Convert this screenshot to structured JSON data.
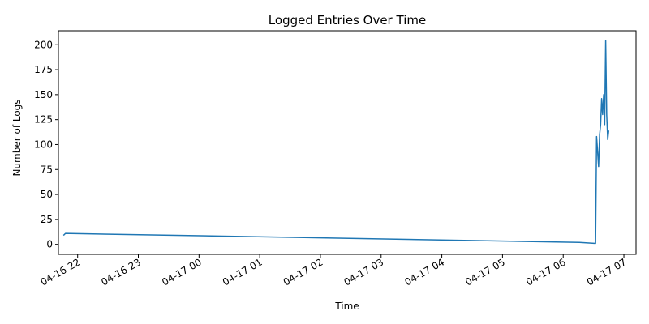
{
  "chart_data": {
    "type": "line",
    "title": "Logged Entries Over Time",
    "xlabel": "Time",
    "ylabel": "Number of Logs",
    "grid": false,
    "legend": "none",
    "line_color": "#1f77b4",
    "xlim": [
      "2026-04-16 21:41",
      "2026-04-17 07:12"
    ],
    "ylim": [
      -10,
      214
    ],
    "x_ticks": [
      {
        "time": "2026-04-16 22:00",
        "label": "04-16 22"
      },
      {
        "time": "2026-04-16 23:00",
        "label": "04-16 23"
      },
      {
        "time": "2026-04-17 00:00",
        "label": "04-17 00"
      },
      {
        "time": "2026-04-17 01:00",
        "label": "04-17 01"
      },
      {
        "time": "2026-04-17 02:00",
        "label": "04-17 02"
      },
      {
        "time": "2026-04-17 03:00",
        "label": "04-17 03"
      },
      {
        "time": "2026-04-17 04:00",
        "label": "04-17 04"
      },
      {
        "time": "2026-04-17 05:00",
        "label": "04-17 05"
      },
      {
        "time": "2026-04-17 06:00",
        "label": "04-17 06"
      },
      {
        "time": "2026-04-17 07:00",
        "label": "04-17 07"
      }
    ],
    "y_ticks": [
      0,
      25,
      50,
      75,
      100,
      125,
      150,
      175,
      200
    ],
    "series": [
      {
        "x": [
          "2026-04-16 21:46",
          "2026-04-16 21:48",
          "2026-04-17 06:16",
          "2026-04-17 06:32",
          "2026-04-17 06:33",
          "2026-04-17 06:35",
          "2026-04-17 06:36",
          "2026-04-17 06:37",
          "2026-04-17 06:38",
          "2026-04-17 06:39",
          "2026-04-17 06:40",
          "2026-04-17 06:41",
          "2026-04-17 06:42",
          "2026-04-17 06:43",
          "2026-04-17 06:44",
          "2026-04-17 06:45"
        ],
        "values": [
          9,
          11,
          2,
          1,
          108,
          78,
          110,
          120,
          146,
          130,
          150,
          120,
          204,
          130,
          105,
          114
        ]
      }
    ]
  }
}
